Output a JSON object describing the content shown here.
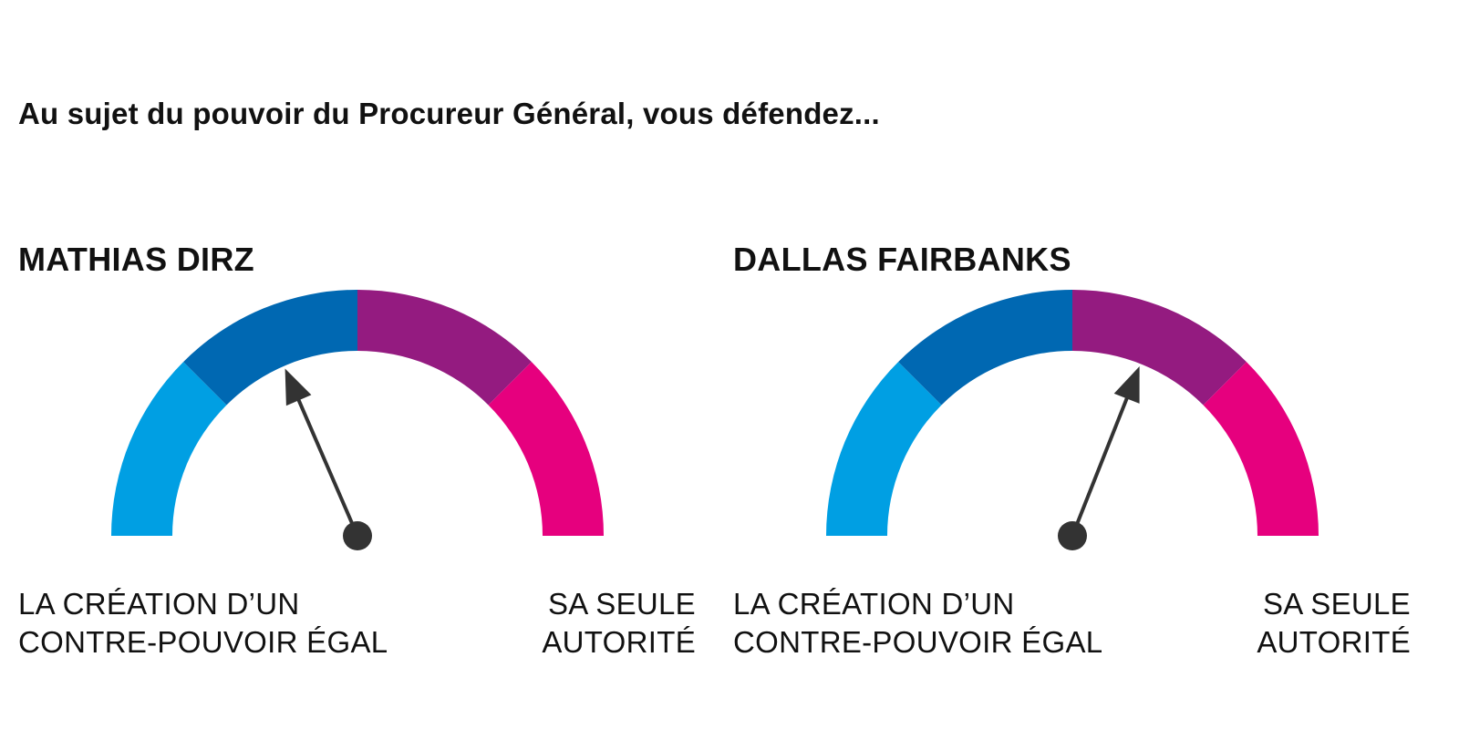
{
  "question": "Au sujet du pouvoir du Procureur Général, vous défendez...",
  "colors": {
    "segment_1": "#009FE3",
    "segment_2": "#0068B2",
    "segment_3": "#941B80",
    "segment_4": "#E6007E",
    "needle": "#333333"
  },
  "chart_data": [
    {
      "type": "gauge",
      "title": "MATHIAS DIRZ",
      "scale": [
        0,
        100
      ],
      "segments": 4,
      "value": 37,
      "label_left": [
        "LA CRÉATION D’UN",
        "CONTRE-POUVOIR ÉGAL"
      ],
      "label_right": [
        "SA SEULE",
        "AUTORITÉ"
      ]
    },
    {
      "type": "gauge",
      "title": "DALLAS FAIRBANKS",
      "scale": [
        0,
        100
      ],
      "segments": 4,
      "value": 62,
      "label_left": [
        "LA CRÉATION D’UN",
        "CONTRE-POUVOIR ÉGAL"
      ],
      "label_right": [
        "SA SEULE",
        "AUTORITÉ"
      ]
    }
  ]
}
